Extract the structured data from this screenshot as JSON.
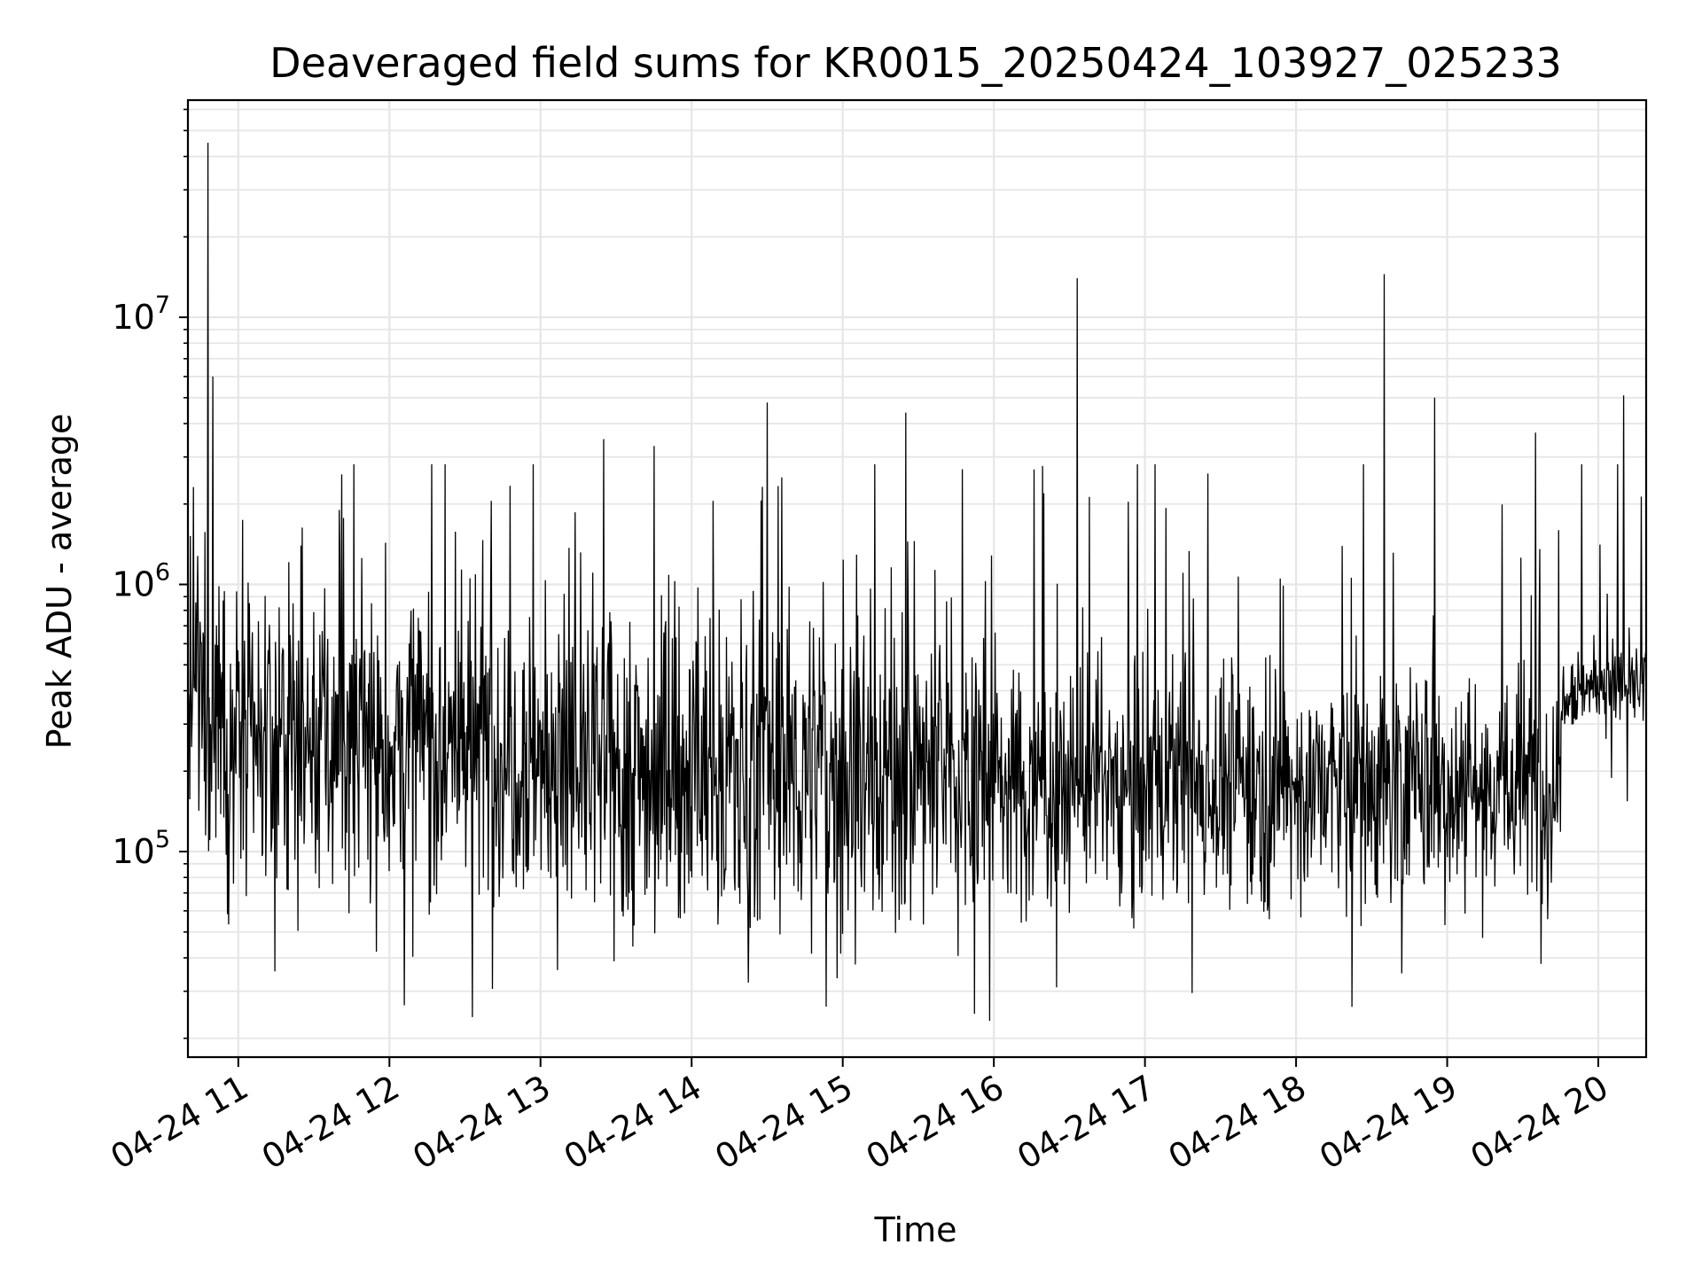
{
  "chart_data": {
    "type": "line",
    "title": "Deaveraged field sums for KR0015_20250424_103927_025233",
    "xlabel": "Time",
    "ylabel": "Peak ADU - average",
    "yscale": "log",
    "ylim": [
      17000,
      65000000
    ],
    "xlim": [
      "04-24 10:40",
      "04-24 20:19"
    ],
    "grid": true,
    "line_color": "#000000",
    "grid_color": "#e6e6e6",
    "x_ticks": [
      {
        "time": "04-24 11:00",
        "label": "04-24 11"
      },
      {
        "time": "04-24 12:00",
        "label": "04-24 12"
      },
      {
        "time": "04-24 13:00",
        "label": "04-24 13"
      },
      {
        "time": "04-24 14:00",
        "label": "04-24 14"
      },
      {
        "time": "04-24 15:00",
        "label": "04-24 15"
      },
      {
        "time": "04-24 16:00",
        "label": "04-24 16"
      },
      {
        "time": "04-24 17:00",
        "label": "04-24 17"
      },
      {
        "time": "04-24 18:00",
        "label": "04-24 18"
      },
      {
        "time": "04-24 19:00",
        "label": "04-24 19"
      },
      {
        "time": "04-24 20:00",
        "label": "04-24 20"
      }
    ],
    "y_ticks": [
      {
        "value": 100000,
        "base": "10",
        "exp": "5"
      },
      {
        "value": 1000000,
        "base": "10",
        "exp": "6"
      },
      {
        "value": 10000000,
        "base": "10",
        "exp": "7"
      }
    ],
    "series": [
      {
        "values_note": "dense noisy trace; key points read from the figure",
        "points": [
          [
            "04-24 10:40",
            350000
          ],
          [
            "04-24 10:45",
            600000
          ],
          [
            "04-24 10:48",
            45000000
          ],
          [
            "04-24 10:50",
            6000000
          ],
          [
            "04-24 10:55",
            200000
          ],
          [
            "04-24 11:10",
            250000
          ],
          [
            "04-24 11:40",
            1900000
          ],
          [
            "04-24 12:30",
            280000
          ],
          [
            "04-24 12:33",
            24000
          ],
          [
            "04-24 13:00",
            300000
          ],
          [
            "04-24 13:25",
            3500000
          ],
          [
            "04-24 13:45",
            3300000
          ],
          [
            "04-24 14:30",
            4800000
          ],
          [
            "04-24 15:25",
            4400000
          ],
          [
            "04-24 16:00",
            170000
          ],
          [
            "04-24 16:25",
            31000
          ],
          [
            "04-24 16:33",
            14000000
          ],
          [
            "04-24 17:00",
            180000
          ],
          [
            "04-24 17:25",
            2600000
          ],
          [
            "04-24 18:00",
            170000
          ],
          [
            "04-24 18:35",
            14500000
          ],
          [
            "04-24 18:42",
            35000
          ],
          [
            "04-24 18:55",
            5000000
          ],
          [
            "04-24 19:35",
            3700000
          ],
          [
            "04-24 19:50",
            300000
          ],
          [
            "04-24 20:05",
            420000
          ],
          [
            "04-24 20:10",
            5100000
          ],
          [
            "04-24 20:19",
            500000
          ]
        ]
      }
    ]
  }
}
